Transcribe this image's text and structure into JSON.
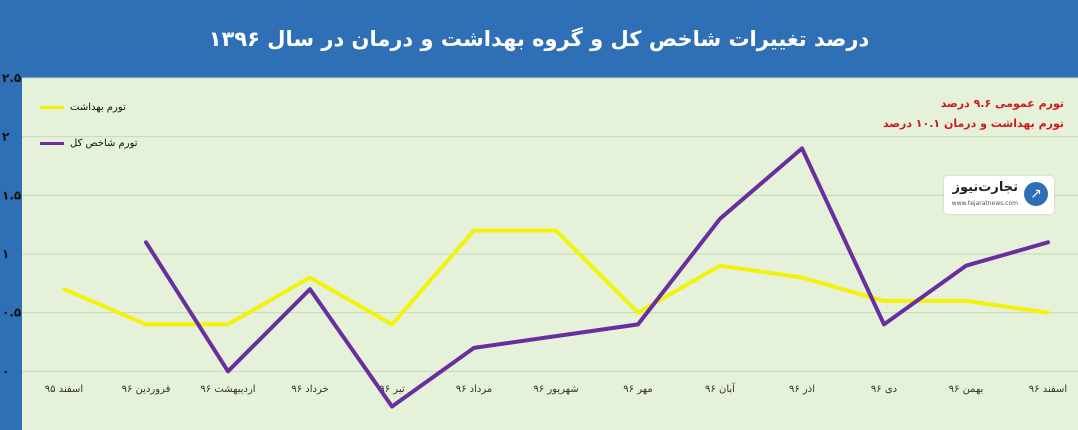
{
  "title": "درصد تغییرات شاخص کل و گروه بهداشت و درمان در سال ۱۳۹۶",
  "annotations": [
    "تورم عمومی ۹.۶ درصد",
    "تورم بهداشت و درمان ۱۰.۱ درصد"
  ],
  "logo": {
    "name": "تجارت‌نیوز",
    "url": "www.tejaratnews.com"
  },
  "colors": {
    "header": "#2f6fb5",
    "plot_bg": "#e5f1d8",
    "health": "#f2f20a",
    "overall": "#6a2f9e",
    "annotation": "#d0191f"
  },
  "chart_data": {
    "type": "line",
    "title": "درصد تغییرات شاخص کل و گروه بهداشت و درمان در سال ۱۳۹۶",
    "categories": [
      "اسفند ۹۵",
      "فروردین ۹۶",
      "اردیبهشت ۹۶",
      "خرداد ۹۶",
      "تیر ۹۶",
      "مرداد ۹۶",
      "شهریور ۹۶",
      "مهر ۹۶",
      "آبان ۹۶",
      "اذر ۹۶",
      "دی ۹۶",
      "بهمن ۹۶",
      "اسفند ۹۶"
    ],
    "series": [
      {
        "name": "تورم بهداشت",
        "color": "#f2f20a",
        "values": [
          0.7,
          0.4,
          0.4,
          0.8,
          0.4,
          1.2,
          1.2,
          0.5,
          0.9,
          0.8,
          0.6,
          0.6,
          0.5
        ]
      },
      {
        "name": "تورم شاخص کل",
        "color": "#6a2f9e",
        "values": [
          null,
          1.1,
          0.0,
          0.7,
          -0.3,
          0.2,
          0.3,
          0.4,
          1.3,
          1.9,
          0.4,
          0.9,
          1.1
        ]
      }
    ],
    "y_tick_labels": [
      "۲.۵",
      "۲",
      "۱.۵",
      "۱",
      "۰.۵",
      "۰"
    ],
    "y_tick_values": [
      2.5,
      2,
      1.5,
      1,
      0.5,
      0
    ],
    "ylim": [
      -0.5,
      2.5
    ],
    "legend_position": "top-left",
    "grid": true
  }
}
